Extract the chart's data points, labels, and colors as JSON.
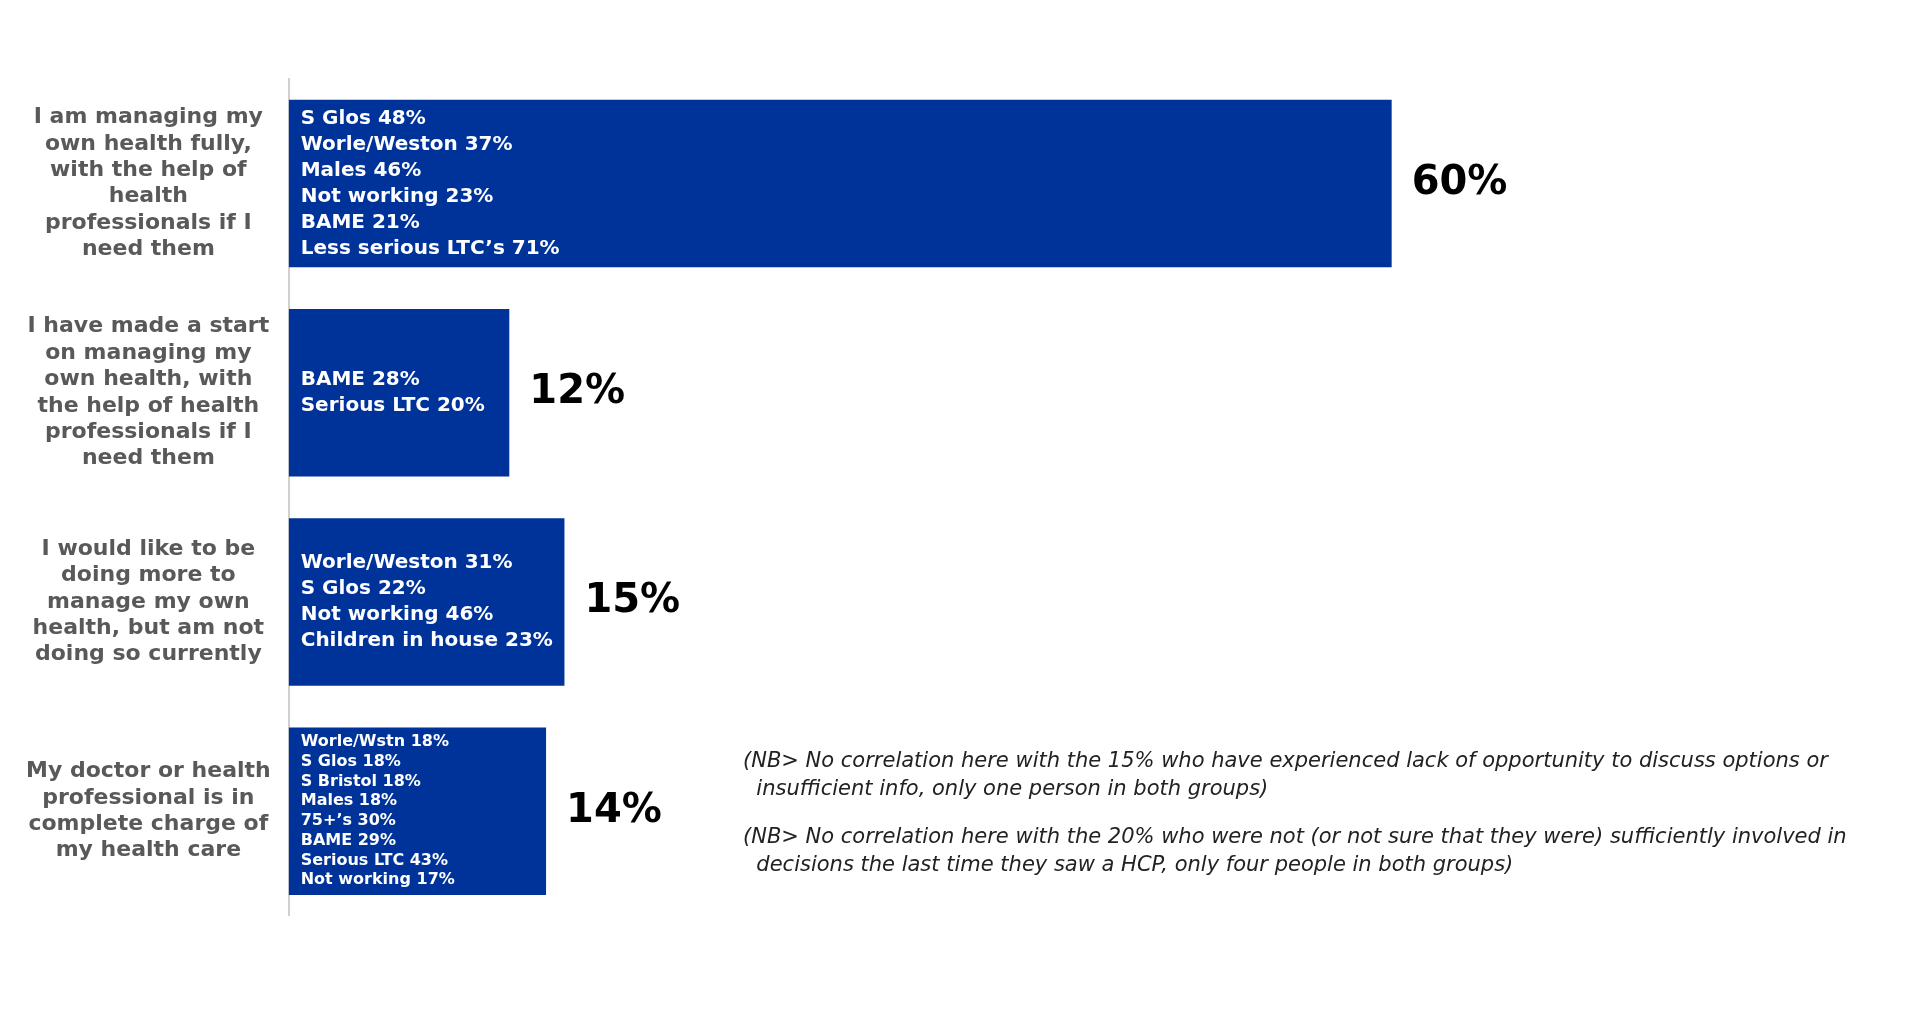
{
  "chart_data": {
    "type": "bar",
    "orientation": "horizontal",
    "categories": [
      "I am managing my own health fully, with the help of health professionals if I need them",
      "I have made a start on managing my own health, with the help of health professionals if I need them",
      "I would like to be doing more to manage my own health, but am not doing so currently",
      "My doctor or health professional is in complete charge of my health care"
    ],
    "values": [
      60,
      12,
      15,
      14
    ],
    "color": "#003399",
    "value_labels": [
      "60%",
      "12%",
      "15%",
      "14%"
    ],
    "legend": false,
    "tick_labels": "y",
    "annotations": [
      "S Glos 48%\nWorle/Weston 37%\nMales 46%\nNot working 23%\nBAME 21%\nLess serious LTC’s 71%",
      "BAME 28%\nSerious LTC 20%",
      "Worle/Weston 31%\nS Glos 22%\nNot working 46%\nChildren in house 23%",
      "Worle/Wstn 18%\nS Glos 18%\nS Bristol 18%\nMales 18%\n75+’s 30%\nBAME 29%\nSerious LTC 43%\nNot working 17%",
      "(NB> No correlation here with the 15% who have experienced lack of opportunity to discuss options or insufficient info, only one person in both groups)",
      "(NB> No correlation here with the 20% who were not (or not sure that they were) sufficiently involved in decisions the last time they saw a HCP, only four people in both groups)"
    ]
  }
}
